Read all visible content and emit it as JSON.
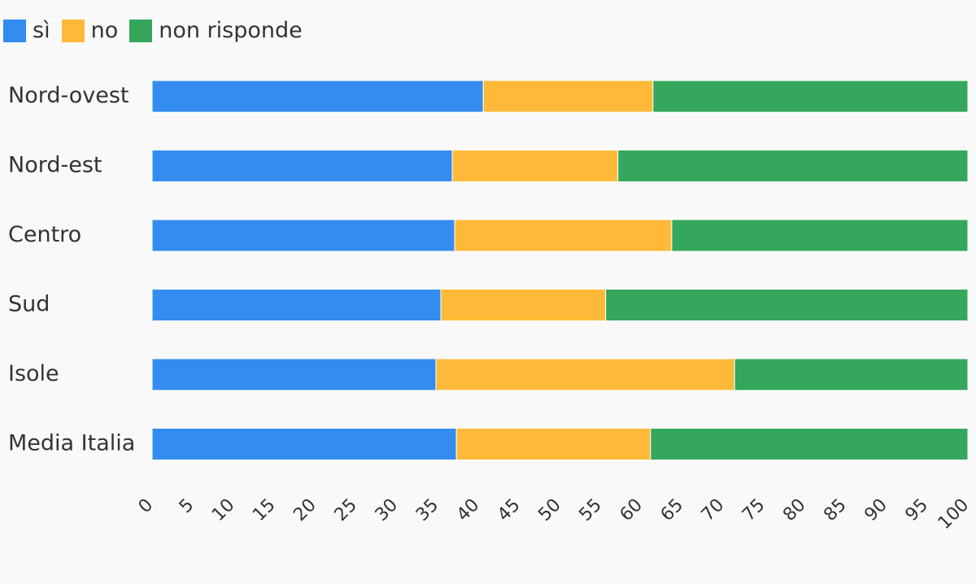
{
  "chart_data": {
    "type": "bar",
    "orientation": "horizontal",
    "stacked": true,
    "title": "",
    "xlabel": "",
    "ylabel": "",
    "xlim": [
      0,
      100
    ],
    "grid": false,
    "legend_position": "top-left",
    "categories": [
      "Nord-ovest",
      "Nord-est",
      "Centro",
      "Sud",
      "Isole",
      "Media Italia"
    ],
    "series": [
      {
        "name": "sì",
        "color": "#348cef",
        "values": [
          40.6,
          36.8,
          37.1,
          35.4,
          34.8,
          37.3
        ]
      },
      {
        "name": "no",
        "color": "#ffb938",
        "values": [
          20.8,
          20.3,
          26.6,
          20.2,
          36.6,
          23.8
        ]
      },
      {
        "name": "non risponde",
        "color": "#34a75c",
        "values": [
          38.6,
          42.9,
          36.3,
          44.4,
          28.6,
          38.9
        ]
      }
    ],
    "x_ticks": [
      "0",
      "5",
      "10",
      "15",
      "20",
      "25",
      "30",
      "35",
      "40",
      "45",
      "50",
      "55",
      "60",
      "65",
      "70",
      "75",
      "80",
      "85",
      "90",
      "95",
      "100"
    ]
  }
}
